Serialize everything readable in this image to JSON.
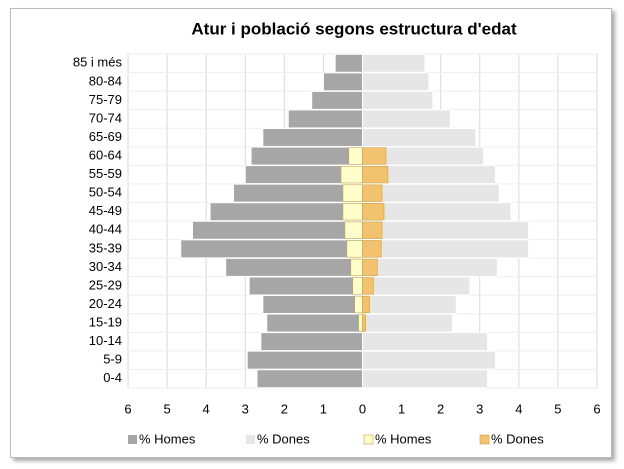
{
  "chart_data": {
    "type": "pyramid",
    "title": "Atur i població segons estructura d'edat",
    "categories": [
      "0-4",
      "5-9",
      "10-14",
      "15-19",
      "20-24",
      "25-29",
      "30-34",
      "35-39",
      "40-44",
      "45-49",
      "50-54",
      "55-59",
      "60-64",
      "65-69",
      "70-74",
      "75-79",
      "80-84",
      "85 i més"
    ],
    "series": [
      {
        "name": "% Homes",
        "color": "#a6a6a6",
        "values": [
          -2.7,
          -2.95,
          -2.6,
          -2.45,
          -2.55,
          -2.9,
          -3.5,
          -4.65,
          -4.35,
          -3.9,
          -3.3,
          -3.0,
          -2.85,
          -2.55,
          -1.9,
          -1.3,
          -1.0,
          -0.7
        ]
      },
      {
        "name": "% Dones",
        "color": "#e6e6e6",
        "values": [
          3.2,
          3.4,
          3.2,
          2.3,
          2.4,
          2.75,
          3.45,
          4.25,
          4.25,
          3.8,
          3.5,
          3.4,
          3.1,
          2.9,
          2.25,
          1.8,
          1.7,
          1.6
        ]
      },
      {
        "name": "% Homes",
        "color": "#ffffcc",
        "values": [
          0,
          0,
          0,
          -0.1,
          -0.2,
          -0.25,
          -0.3,
          -0.4,
          -0.45,
          -0.5,
          -0.5,
          -0.55,
          -0.35,
          0,
          0,
          0,
          0,
          0
        ]
      },
      {
        "name": "% Dones",
        "color": "#f2c26e",
        "values": [
          0,
          0,
          0,
          0.08,
          0.18,
          0.28,
          0.38,
          0.48,
          0.5,
          0.55,
          0.5,
          0.65,
          0.6,
          0,
          0,
          0,
          0,
          0
        ]
      }
    ],
    "xlim": [
      -6,
      6
    ],
    "xticks": [
      {
        "value": -6,
        "label": "6"
      },
      {
        "value": -5,
        "label": "5"
      },
      {
        "value": -4,
        "label": "4"
      },
      {
        "value": -3,
        "label": "3"
      },
      {
        "value": -2,
        "label": "2"
      },
      {
        "value": -1,
        "label": "1"
      },
      0,
      1,
      2,
      3,
      4,
      5,
      6
    ],
    "grid": true
  }
}
